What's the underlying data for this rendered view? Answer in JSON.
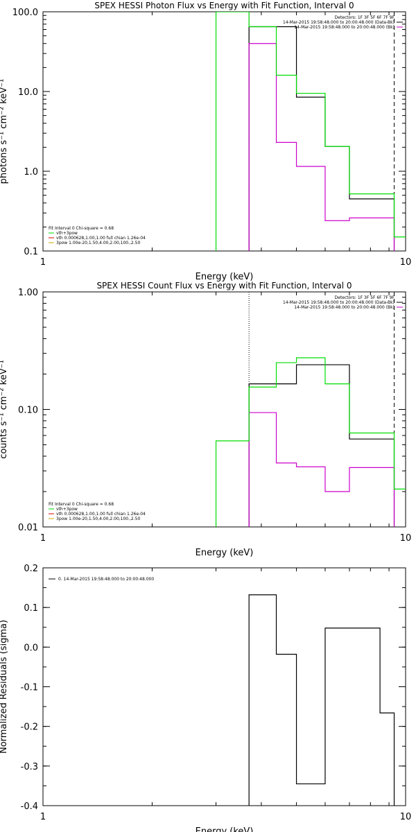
{
  "colors": {
    "data": "#000000",
    "model": "#00dd00",
    "background": "#cc00cc",
    "thermal": "#dd0000",
    "powerlaw": "#ccaa00"
  },
  "chart_data": [
    {
      "type": "line",
      "title": "SPEX HESSI Photon Flux vs Energy with Fit Function, Interval 0",
      "xlabel": "Energy (keV)",
      "ylabel": "photons s⁻¹ cm⁻² keV⁻¹",
      "xscale": "log",
      "yscale": "log",
      "xlim": [
        1,
        10
      ],
      "ylim": [
        0.1,
        100
      ],
      "xticks": [
        "1",
        "10"
      ],
      "yticks": [
        {
          "v": 0.1,
          "label": "0.1"
        },
        {
          "v": 1,
          "label": "1.0"
        },
        {
          "v": 10,
          "label": "10.0"
        },
        {
          "v": 100,
          "label": "100.0"
        }
      ],
      "vlines": [
        {
          "x": 3.7,
          "style": "dotted"
        },
        {
          "x": 9.3,
          "style": "dashed"
        }
      ],
      "legend_top": [
        {
          "text": "Detectors: 1F 3F 5F 6F 7F 9F",
          "color": ""
        },
        {
          "text": "14-Mar-2015 19:58:48.000 to 20:00:48.000 (Data-Bk)",
          "color": "#000000"
        },
        {
          "text": "14-Mar-2015 19:58:48.000 to 20:00:48.000 (Bk)",
          "color": "#cc00cc"
        }
      ],
      "legend_bottom": [
        {
          "text": "Fit Interval 0   Chi-square = 0.68",
          "color": ""
        },
        {
          "text": "vth+3pow",
          "color": "#00dd00"
        },
        {
          "text": "vth 0.000628,1.00,1.00  full chian 1.26e-04",
          "color": "#dd0000"
        },
        {
          "text": "3pow 1.00e-20,1.50,4.00,2.00,100.,2.50",
          "color": "#ccaa00"
        }
      ],
      "series": [
        {
          "color": "#000000",
          "edges": [
            3.7,
            4.4,
            5.0,
            6.0,
            7.0,
            8.5,
            9.3
          ],
          "values": [
            65,
            65,
            8.5,
            2.05,
            0.45,
            0.45
          ]
        },
        {
          "color": "#cc00cc",
          "edges": [
            3.7,
            4.4,
            5.0,
            6.0,
            7.0,
            8.5,
            9.3
          ],
          "values": [
            40,
            2.3,
            1.15,
            0.24,
            0.26,
            0.26
          ]
        },
        {
          "color": "#00dd00",
          "edges": [
            3.0,
            3.7,
            4.4,
            5.0,
            6.0,
            7.0,
            8.5,
            9.3,
            10.0
          ],
          "values": [
            100,
            65,
            16,
            9.5,
            2.05,
            0.52,
            0.52,
            0.15
          ]
        }
      ]
    },
    {
      "type": "line",
      "title": "SPEX HESSI Count Flux vs Energy with Fit Function, Interval 0",
      "xlabel": "Energy (keV)",
      "ylabel": "counts s⁻¹ cm⁻² keV⁻¹",
      "xscale": "log",
      "yscale": "log",
      "xlim": [
        1,
        10
      ],
      "ylim": [
        0.01,
        1
      ],
      "xticks": [
        "1",
        "10"
      ],
      "yticks": [
        {
          "v": 0.01,
          "label": "0.01"
        },
        {
          "v": 0.1,
          "label": "0.10"
        },
        {
          "v": 1,
          "label": "1.00"
        }
      ],
      "vlines": [
        {
          "x": 3.7,
          "style": "dotted"
        },
        {
          "x": 9.3,
          "style": "dashed"
        }
      ],
      "legend_top": [
        {
          "text": "Detectors: 1F 3F 5F 6F 7F 9F",
          "color": ""
        },
        {
          "text": "14-Mar-2015 19:58:48.000 to 20:00:48.000 (Data-Bk)",
          "color": "#000000"
        },
        {
          "text": "14-Mar-2015 19:58:48.000 to 20:00:48.000 (Bk)",
          "color": "#cc00cc"
        }
      ],
      "legend_bottom": [
        {
          "text": "Fit Interval 0   Chi-square = 0.68",
          "color": ""
        },
        {
          "text": "vth+3pow",
          "color": "#00dd00"
        },
        {
          "text": "vth 0.000628,1.00,1.00  full chian 1.26e-04",
          "color": "#dd0000"
        },
        {
          "text": "3pow 1.00e-20,1.50,4.00,2.00,100.,2.50",
          "color": "#ccaa00"
        }
      ],
      "series": [
        {
          "color": "#000000",
          "edges": [
            3.7,
            4.4,
            5.0,
            6.0,
            7.0,
            8.5,
            9.3
          ],
          "values": [
            0.165,
            0.165,
            0.24,
            0.24,
            0.056,
            0.056
          ]
        },
        {
          "color": "#cc00cc",
          "edges": [
            3.7,
            4.4,
            5.0,
            6.0,
            7.0,
            8.5,
            9.3
          ],
          "values": [
            0.094,
            0.035,
            0.0325,
            0.02,
            0.032,
            0.032
          ]
        },
        {
          "color": "#00dd00",
          "edges": [
            3.0,
            3.7,
            4.4,
            5.0,
            6.0,
            7.0,
            8.5,
            9.3,
            10.0
          ],
          "values": [
            0.054,
            0.155,
            0.25,
            0.275,
            0.165,
            0.063,
            0.063,
            0.021
          ]
        }
      ]
    },
    {
      "type": "line",
      "title": "",
      "xlabel": "Energy (keV)",
      "ylabel": "Normalized Residuals (sigma)",
      "xscale": "log",
      "yscale": "linear",
      "xlim": [
        1,
        10
      ],
      "ylim": [
        -0.4,
        0.2
      ],
      "xticks": [
        "1",
        "10"
      ],
      "yticks": [
        {
          "v": -0.4,
          "label": "-0.4"
        },
        {
          "v": -0.3,
          "label": "-0.3"
        },
        {
          "v": -0.2,
          "label": "-0.2"
        },
        {
          "v": -0.1,
          "label": "-0.1"
        },
        {
          "v": 0.0,
          "label": "0.0"
        },
        {
          "v": 0.1,
          "label": "0.1"
        },
        {
          "v": 0.2,
          "label": "0.2"
        }
      ],
      "vlines": [],
      "legend_top": [],
      "legend_bottom": [],
      "legend_left": [
        {
          "text": "0. 14-Mar-2015 19:58:48.000 to 20:00:48.000",
          "color": "#000000"
        }
      ],
      "series": [
        {
          "color": "#000000",
          "edges": [
            3.7,
            4.4,
            5.0,
            6.0,
            7.0,
            8.5,
            9.3
          ],
          "values": [
            0.132,
            -0.018,
            -0.345,
            0.048,
            0.048,
            -0.166
          ],
          "drop": -0.4
        }
      ]
    }
  ]
}
